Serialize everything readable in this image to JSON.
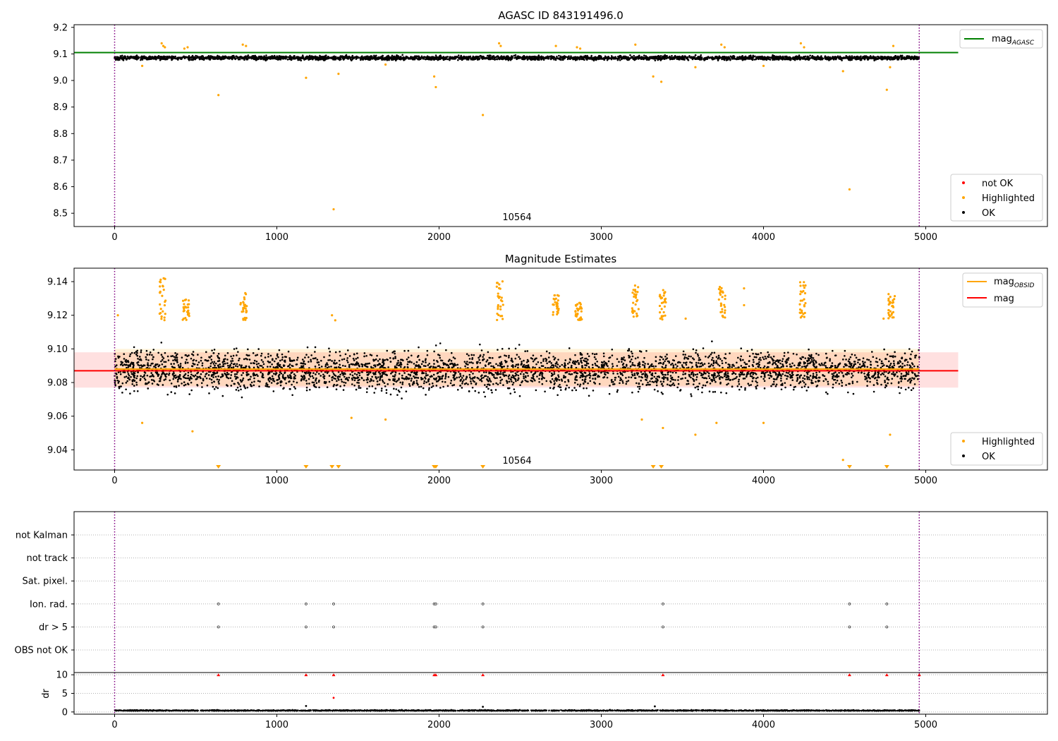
{
  "chart_data": [
    {
      "type": "scatter",
      "title": "AGASC ID 843191496.0",
      "xlim": [
        -250,
        5750
      ],
      "ylim": [
        8.45,
        9.21
      ],
      "xticks": [
        0,
        1000,
        2000,
        3000,
        4000,
        5000
      ],
      "yticks": [
        8.5,
        8.6,
        8.7,
        8.8,
        8.9,
        9.0,
        9.1,
        9.2
      ],
      "ytick_labels": [
        "8.5",
        "8.6",
        "8.7",
        "8.8",
        "8.9",
        "9.0",
        "9.1",
        "9.2"
      ],
      "xtick_labels": [
        "0",
        "1000",
        "2000",
        "3000",
        "4000",
        "5000"
      ],
      "vlines": [
        0,
        4960
      ],
      "annotation": {
        "text": "10564",
        "x": 2480,
        "y": 8.48
      },
      "mag_agasc": 9.105,
      "hline_x_range": [
        -250,
        5200
      ],
      "ok_band": {
        "x_range": [
          0,
          4960
        ],
        "mean": 9.085,
        "spread": 0.012
      },
      "highlighted_points": [
        {
          "x": 170,
          "y": 9.055
        },
        {
          "x": 640,
          "y": 8.945
        },
        {
          "x": 1180,
          "y": 9.01
        },
        {
          "x": 1350,
          "y": 8.515
        },
        {
          "x": 1380,
          "y": 9.025
        },
        {
          "x": 1670,
          "y": 9.06
        },
        {
          "x": 1970,
          "y": 9.015
        },
        {
          "x": 1980,
          "y": 8.975
        },
        {
          "x": 2270,
          "y": 8.87
        },
        {
          "x": 3320,
          "y": 9.015
        },
        {
          "x": 3370,
          "y": 8.995
        },
        {
          "x": 3580,
          "y": 9.05
        },
        {
          "x": 4000,
          "y": 9.055
        },
        {
          "x": 4490,
          "y": 9.035
        },
        {
          "x": 4530,
          "y": 8.59
        },
        {
          "x": 4760,
          "y": 8.965
        },
        {
          "x": 4780,
          "y": 9.05
        },
        {
          "x": 290,
          "y": 9.14
        },
        {
          "x": 300,
          "y": 9.13
        },
        {
          "x": 310,
          "y": 9.125
        },
        {
          "x": 430,
          "y": 9.12
        },
        {
          "x": 450,
          "y": 9.125
        },
        {
          "x": 790,
          "y": 9.135
        },
        {
          "x": 810,
          "y": 9.13
        },
        {
          "x": 2370,
          "y": 9.14
        },
        {
          "x": 2380,
          "y": 9.13
        },
        {
          "x": 2720,
          "y": 9.13
        },
        {
          "x": 2850,
          "y": 9.125
        },
        {
          "x": 2870,
          "y": 9.12
        },
        {
          "x": 3210,
          "y": 9.135
        },
        {
          "x": 3740,
          "y": 9.135
        },
        {
          "x": 3760,
          "y": 9.125
        },
        {
          "x": 4230,
          "y": 9.14
        },
        {
          "x": 4250,
          "y": 9.125
        },
        {
          "x": 4800,
          "y": 9.13
        }
      ],
      "legend_top": [
        "mag_{AGASC}"
      ],
      "legend_bottom": [
        "not OK",
        "Highlighted",
        "OK"
      ],
      "colors": {
        "ok": "#000000",
        "highlighted": "#ffa500",
        "not_ok": "#ff0000",
        "agasc_line": "#008000",
        "vline": "#800080"
      }
    },
    {
      "type": "scatter",
      "title": "Magnitude Estimates",
      "xlim": [
        -250,
        5750
      ],
      "ylim": [
        9.028,
        9.148
      ],
      "xticks": [
        0,
        1000,
        2000,
        3000,
        4000,
        5000
      ],
      "yticks": [
        9.04,
        9.06,
        9.08,
        9.1,
        9.12,
        9.14
      ],
      "ytick_labels": [
        "9.04",
        "9.06",
        "9.08",
        "9.10",
        "9.12",
        "9.14"
      ],
      "xtick_labels": [
        "0",
        "1000",
        "2000",
        "3000",
        "4000",
        "5000"
      ],
      "vlines": [
        0,
        4960
      ],
      "annotation": {
        "text": "10564",
        "x": 2480,
        "y": 9.031
      },
      "mag": 9.087,
      "mag_band": [
        9.077,
        9.098
      ],
      "mag_line_x_range": [
        -250,
        5200
      ],
      "mag_obsid": 9.088,
      "mag_obsid_band": [
        9.078,
        9.1
      ],
      "mag_obsid_x_range": [
        0,
        4960
      ],
      "ok_band": {
        "x_range": [
          0,
          4960
        ],
        "mean": 9.087,
        "spread": 0.011
      },
      "highlighted_points": [
        {
          "x": 20,
          "y": 9.12
        },
        {
          "x": 170,
          "y": 9.056
        },
        {
          "x": 480,
          "y": 9.051
        },
        {
          "x": 1460,
          "y": 9.059
        },
        {
          "x": 1670,
          "y": 9.058
        },
        {
          "x": 3250,
          "y": 9.058
        },
        {
          "x": 3380,
          "y": 9.053
        },
        {
          "x": 3580,
          "y": 9.049
        },
        {
          "x": 3710,
          "y": 9.056
        },
        {
          "x": 4000,
          "y": 9.056
        },
        {
          "x": 4780,
          "y": 9.049
        },
        {
          "x": 4490,
          "y": 9.034
        },
        {
          "x": 1340,
          "y": 9.12
        },
        {
          "x": 1360,
          "y": 9.117
        },
        {
          "x": 3520,
          "y": 9.118
        },
        {
          "x": 3880,
          "y": 9.136
        },
        {
          "x": 3880,
          "y": 9.126
        },
        {
          "x": 4740,
          "y": 9.118
        }
      ],
      "highlighted_clusters": [
        {
          "x": 295,
          "y_min": 9.117,
          "y_max": 9.142
        },
        {
          "x": 440,
          "y_min": 9.117,
          "y_max": 9.13
        },
        {
          "x": 795,
          "y_min": 9.117,
          "y_max": 9.136
        },
        {
          "x": 2375,
          "y_min": 9.117,
          "y_max": 9.141
        },
        {
          "x": 2720,
          "y_min": 9.12,
          "y_max": 9.132
        },
        {
          "x": 2860,
          "y_min": 9.117,
          "y_max": 9.128
        },
        {
          "x": 3210,
          "y_min": 9.117,
          "y_max": 9.138
        },
        {
          "x": 3380,
          "y_min": 9.117,
          "y_max": 9.135
        },
        {
          "x": 3745,
          "y_min": 9.117,
          "y_max": 9.137
        },
        {
          "x": 4240,
          "y_min": 9.117,
          "y_max": 9.14
        },
        {
          "x": 4790,
          "y_min": 9.117,
          "y_max": 9.133
        }
      ],
      "clipped_low_markers": [
        640,
        1180,
        1340,
        1380,
        1970,
        1980,
        2270,
        3320,
        3370,
        4530,
        4760
      ],
      "legend_top": [
        "mag_{OBSID}",
        "mag"
      ],
      "legend_bottom": [
        "Highlighted",
        "OK"
      ],
      "colors": {
        "ok": "#000000",
        "highlighted": "#ffa500",
        "mag": "#ff0000",
        "mag_obsid": "#ffa500",
        "vline": "#800080"
      }
    },
    {
      "type": "scatter",
      "xlim": [
        -250,
        5750
      ],
      "categories": [
        "not Kalman",
        "not track",
        "Sat. pixel.",
        "Ion. rad.",
        "dr > 5",
        "OBS not OK"
      ],
      "flag_points": {
        "Ion. rad.": [
          640,
          1180,
          1350,
          1970,
          1980,
          2270,
          3380,
          4530,
          4760
        ],
        "dr > 5": [
          640,
          1180,
          1350,
          1970,
          1980,
          2270,
          3380,
          4530,
          4760
        ]
      },
      "vlines": [
        0,
        4960
      ]
    },
    {
      "type": "scatter",
      "ylabel": "dr",
      "xlim": [
        -250,
        5750
      ],
      "ylim": [
        -0.6,
        10.6
      ],
      "xticks": [
        0,
        1000,
        2000,
        3000,
        4000,
        5000
      ],
      "xtick_labels": [
        "0",
        "1000",
        "2000",
        "3000",
        "4000",
        "5000"
      ],
      "yticks": [
        0,
        5,
        10
      ],
      "ytick_labels": [
        "0",
        "5",
        "10"
      ],
      "clipped_high_markers": [
        640,
        1180,
        1350,
        1970,
        1980,
        2270,
        3380,
        4530,
        4760,
        4960
      ],
      "outliers": [
        {
          "x": 1180,
          "y": 1.6
        },
        {
          "x": 1350,
          "y": 3.8
        },
        {
          "x": 2270,
          "y": 1.4
        },
        {
          "x": 3330,
          "y": 1.5
        }
      ],
      "dr_baseline": 0.3,
      "vlines": [
        0,
        4960
      ]
    }
  ]
}
